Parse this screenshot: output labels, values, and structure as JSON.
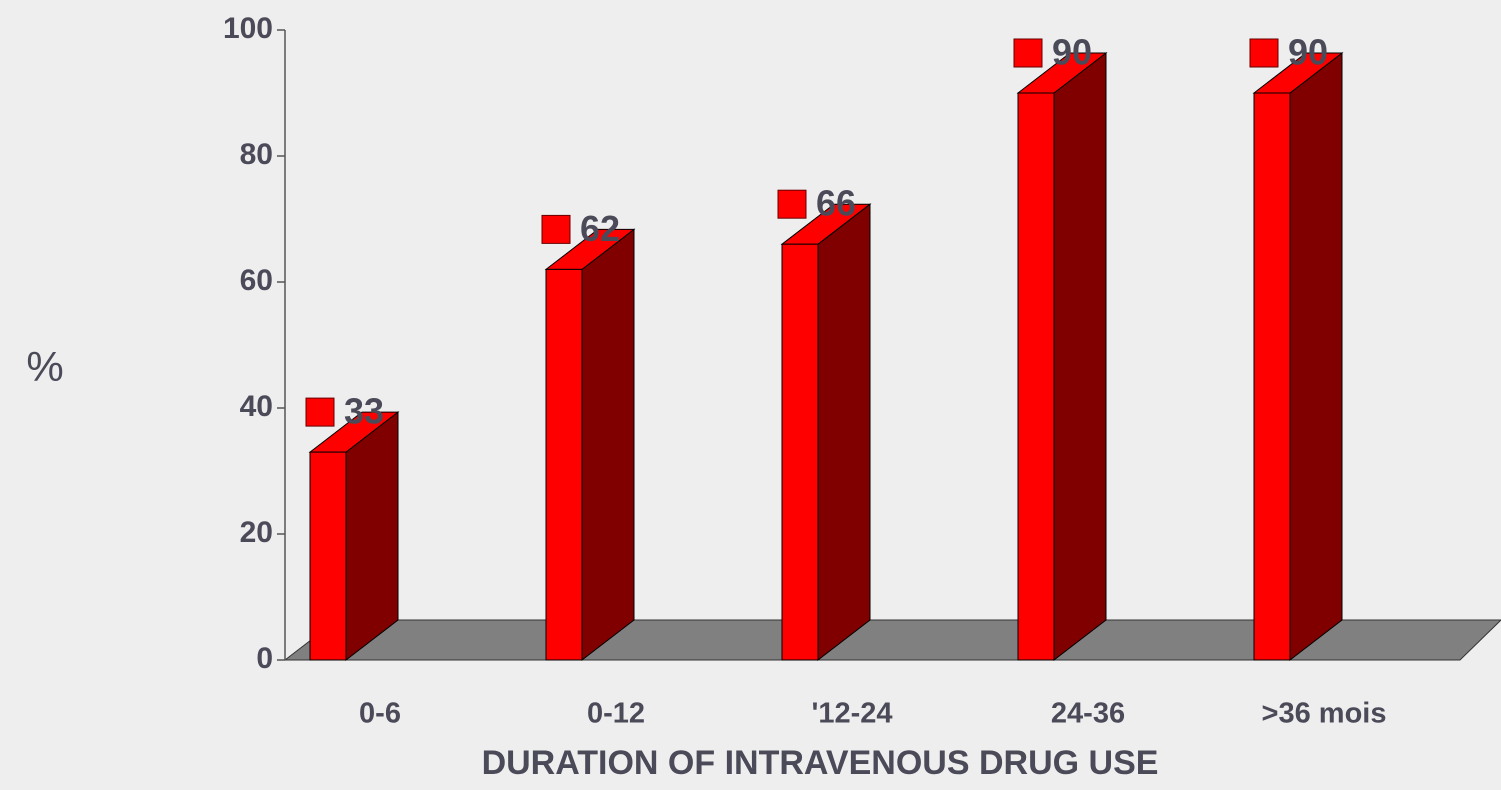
{
  "chart_data": {
    "type": "bar3d",
    "categories": [
      "0-6",
      "0-12",
      "'12-24",
      "24-36",
      ">36 mois"
    ],
    "values": [
      33,
      62,
      66,
      90,
      90
    ],
    "color": "#ff0000",
    "side_color": "#800000",
    "floor_color": "#808080",
    "ylabel": "%",
    "xlabel": "DURATION OF INTRAVENOUS DRUG USE",
    "ylim": [
      0,
      100
    ],
    "yticks": [
      0,
      20,
      40,
      60,
      80,
      100
    ]
  }
}
